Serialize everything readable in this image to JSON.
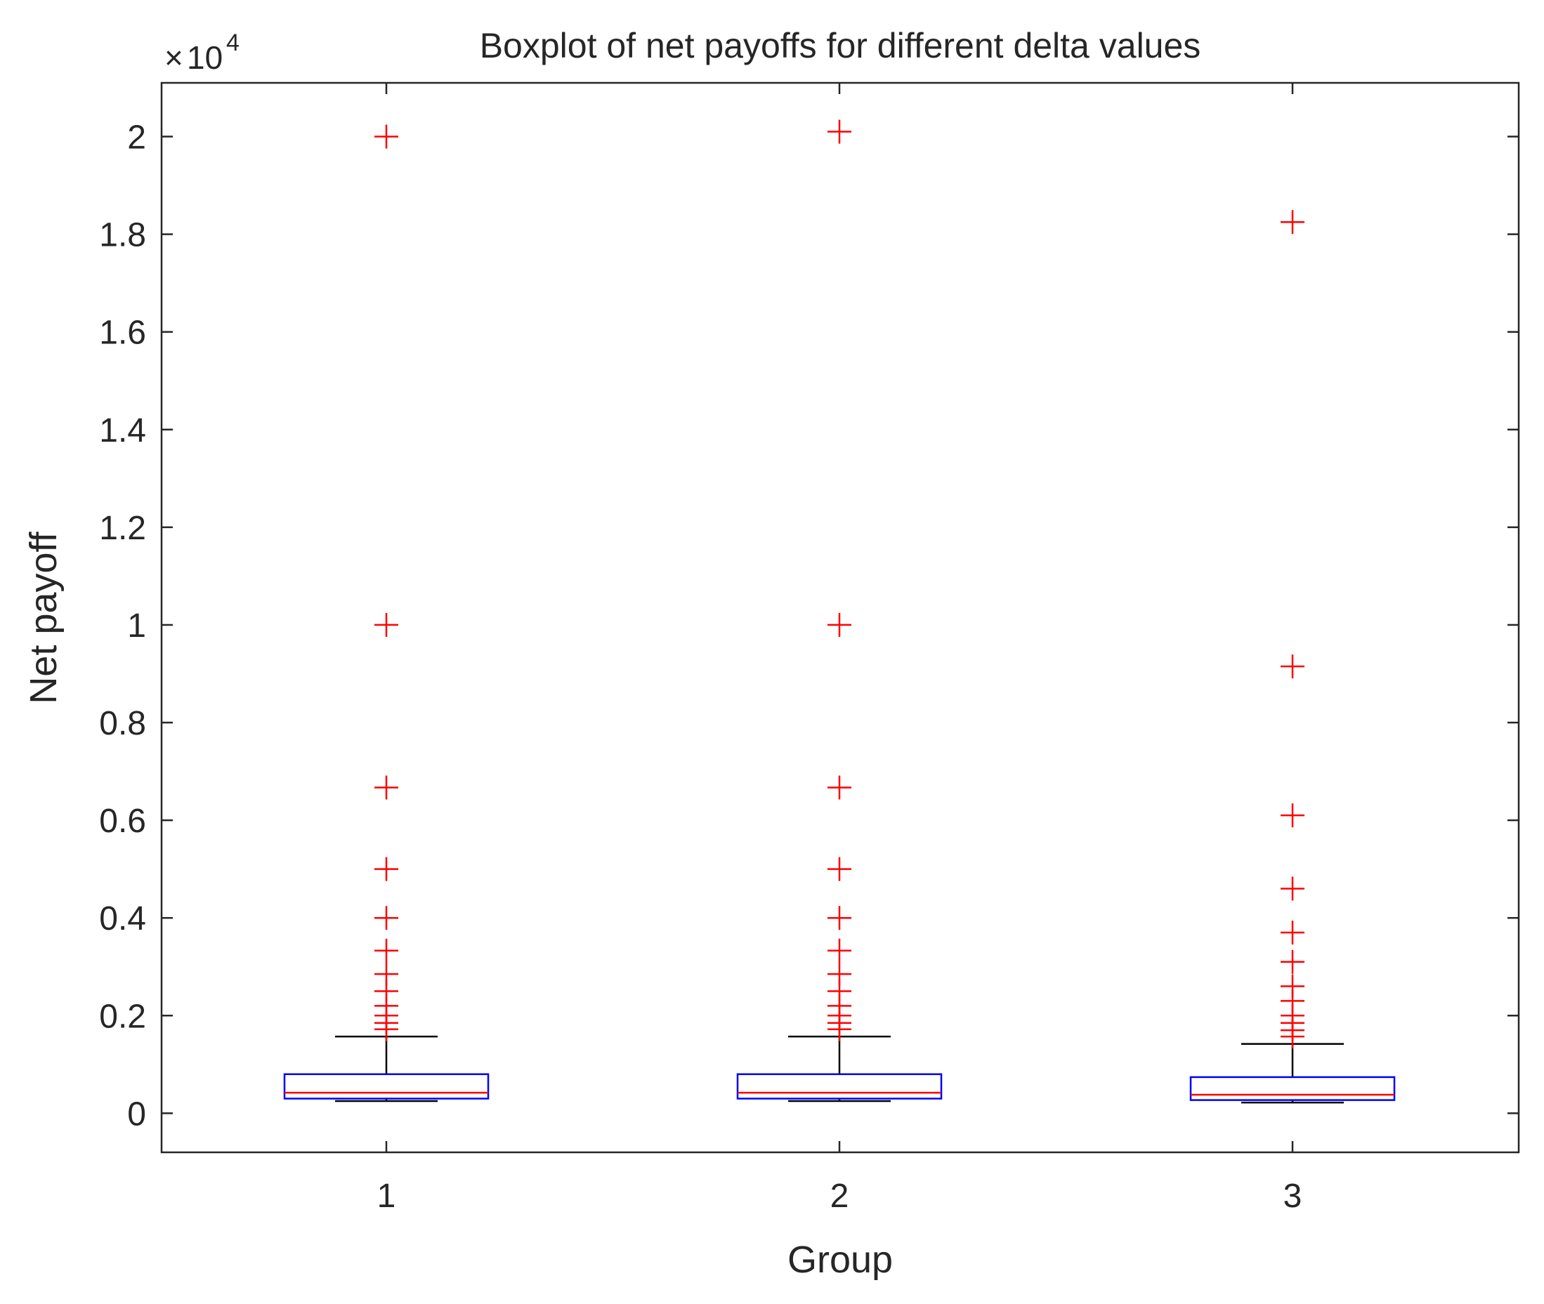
{
  "chart_data": {
    "type": "boxplot",
    "title": "Boxplot of net payoffs for different delta values",
    "xlabel": "Group",
    "ylabel": "Net payoff",
    "exponent_multiplier": "×",
    "exponent_base": "10",
    "exponent_power": "4",
    "scale_factor": 10000,
    "ylim": [
      -0.08,
      2.11
    ],
    "y_ticks": [
      0,
      0.2,
      0.4,
      0.6,
      0.8,
      1,
      1.2,
      1.4,
      1.6,
      1.8,
      2
    ],
    "y_tick_labels": [
      "0",
      "0.2",
      "0.4",
      "0.6",
      "0.8",
      "1",
      "1.2",
      "1.4",
      "1.6",
      "1.8",
      "2"
    ],
    "categories": [
      "1",
      "2",
      "3"
    ],
    "grid": false,
    "colors": {
      "box": "#0000ff",
      "median": "#ff0000",
      "whisker": "#000000",
      "outlier": "#ff0000",
      "axes": "#262626"
    },
    "series": [
      {
        "name": "1",
        "whisker_low": 0.025,
        "q1": 0.03,
        "median": 0.042,
        "q3": 0.08,
        "whisker_high": 0.157,
        "outliers": [
          0.172,
          0.185,
          0.2,
          0.22,
          0.25,
          0.285,
          0.333,
          0.4,
          0.5,
          0.667,
          1.0,
          2.0
        ]
      },
      {
        "name": "2",
        "whisker_low": 0.025,
        "q1": 0.03,
        "median": 0.042,
        "q3": 0.08,
        "whisker_high": 0.157,
        "outliers": [
          0.172,
          0.185,
          0.2,
          0.22,
          0.25,
          0.285,
          0.333,
          0.4,
          0.5,
          0.667,
          1.0,
          2.01
        ]
      },
      {
        "name": "3",
        "whisker_low": 0.022,
        "q1": 0.027,
        "median": 0.038,
        "q3": 0.074,
        "whisker_high": 0.142,
        "outliers": [
          0.157,
          0.17,
          0.185,
          0.2,
          0.23,
          0.26,
          0.31,
          0.37,
          0.46,
          0.61,
          0.915,
          1.825
        ]
      }
    ]
  }
}
